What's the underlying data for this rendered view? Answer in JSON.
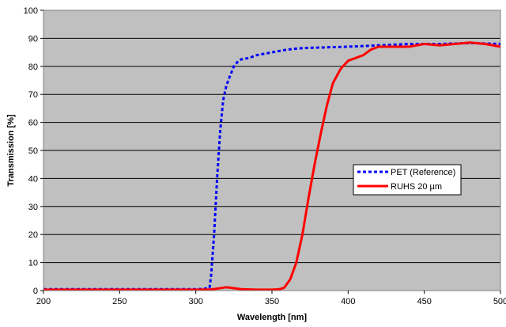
{
  "chart_data": {
    "type": "line",
    "title": "",
    "xlabel": "Wavelength [nm]",
    "ylabel": "Transmission [%]",
    "xlim": [
      200,
      500
    ],
    "ylim": [
      0,
      100
    ],
    "x_ticks": [
      200,
      250,
      300,
      350,
      400,
      450,
      500
    ],
    "y_ticks": [
      0,
      10,
      20,
      30,
      40,
      50,
      60,
      70,
      80,
      90,
      100
    ],
    "grid": "horizontal",
    "plot_background": "#c0c0c0",
    "legend_position": "center-right",
    "series": [
      {
        "name": "PET (Reference)",
        "color": "#0000ff",
        "style": "dashed",
        "x": [
          200,
          250,
          300,
          305,
          309,
          310,
          312,
          314,
          316,
          318,
          320,
          322,
          325,
          328,
          330,
          335,
          340,
          350,
          360,
          370,
          380,
          400,
          420,
          440,
          460,
          480,
          500
        ],
        "y": [
          0.5,
          0.5,
          0.5,
          0.6,
          1,
          5,
          20,
          40,
          57,
          68,
          73,
          76,
          80,
          82,
          82.5,
          83,
          84,
          85,
          86,
          86.5,
          86.7,
          87,
          87.5,
          88,
          88,
          88.3,
          88
        ]
      },
      {
        "name": "RUHS 20 µm",
        "color": "#ff0000",
        "style": "solid",
        "x": [
          200,
          300,
          310,
          320,
          330,
          340,
          350,
          355,
          358,
          362,
          366,
          370,
          374,
          378,
          382,
          386,
          390,
          395,
          400,
          405,
          410,
          415,
          420,
          430,
          440,
          450,
          460,
          470,
          480,
          490,
          500
        ],
        "y": [
          0.3,
          0.3,
          0.4,
          1.2,
          0.5,
          0.3,
          0.3,
          0.5,
          1,
          4,
          10,
          20,
          33,
          45,
          56,
          66,
          74,
          79,
          82,
          83,
          84,
          86,
          87,
          87,
          87,
          88,
          87.5,
          88,
          88.5,
          88,
          87
        ]
      }
    ]
  }
}
